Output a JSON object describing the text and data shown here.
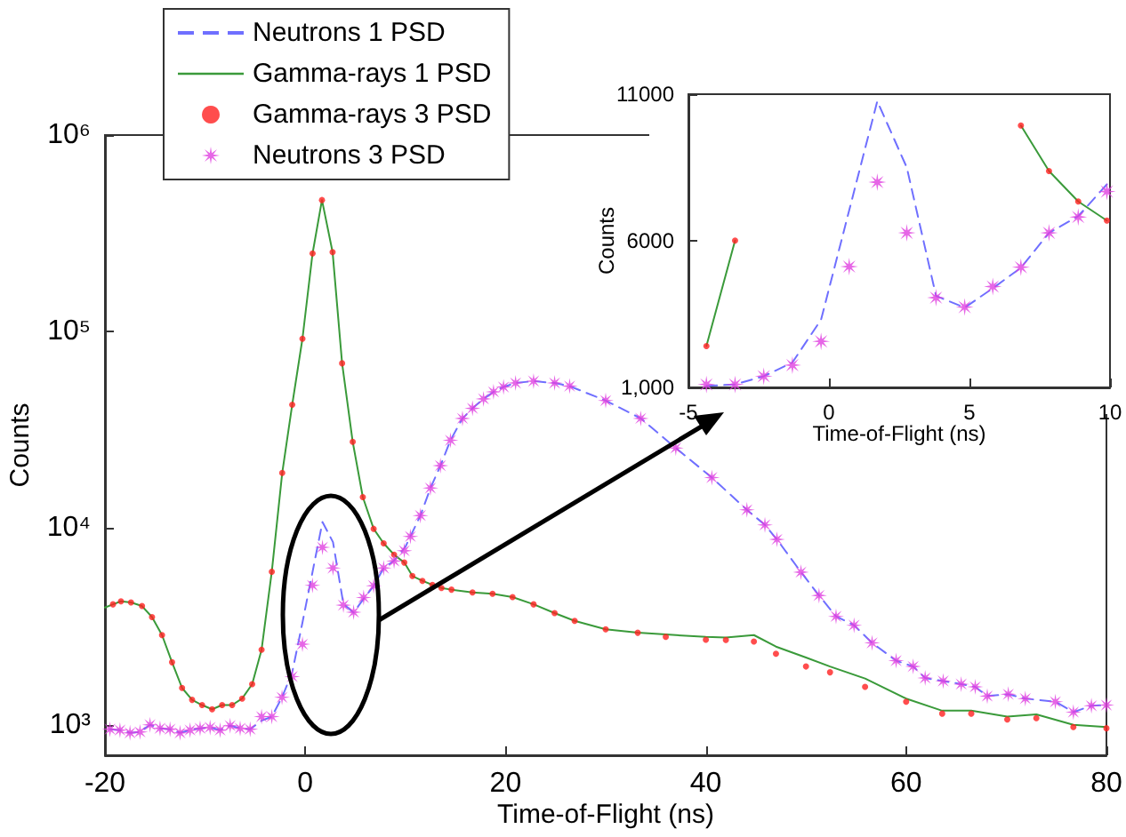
{
  "chart_data": [
    {
      "type": "line",
      "xlabel": "Time-of-Flight (ns)",
      "ylabel": "Counts",
      "log": "y",
      "xlim": [
        -20,
        80
      ],
      "xticks": [
        -20,
        0,
        20,
        40,
        60,
        80
      ],
      "ylim": [
        700,
        1000000
      ],
      "yticks": [
        {
          "value": 1000,
          "label": "10³"
        },
        {
          "value": 10000,
          "label": "10⁴"
        },
        {
          "value": 100000,
          "label": "10⁵"
        },
        {
          "value": 1000000,
          "label": "10⁶"
        }
      ],
      "grid": false,
      "legend": "top left",
      "series": [
        {
          "name": "Neutrons 1 PSD",
          "type": "line",
          "color": "#6f6fff",
          "line_style": "dashed",
          "marker": "none",
          "x": [
            -19.5,
            -18.5,
            -17.5,
            -16.5,
            -15.5,
            -14.5,
            -13.5,
            -12.5,
            -11.5,
            -10.5,
            -9.5,
            -8.5,
            -7.5,
            -6.5,
            -5.5,
            -4.36,
            -3.34,
            -2.32,
            -1.3,
            -0.28,
            1.72,
            2.77,
            3.81,
            4.83,
            5.83,
            6.83,
            7.83,
            8.87,
            10,
            11.5,
            12.5,
            13.5,
            14.5,
            15.7,
            16.7,
            17.8,
            18.8,
            19.8,
            21,
            22.8,
            24.9,
            26.4,
            30,
            33.5,
            37,
            40.6,
            44.1,
            45.9,
            47.1,
            49.5,
            51.3,
            53,
            54.8,
            56.6,
            59,
            60.7,
            61.9,
            63.7,
            65.5,
            66.9,
            68.1,
            70.2,
            71.9,
            74.9,
            76.7,
            78.5,
            80
          ],
          "values": [
            950,
            940,
            910,
            920,
            1000,
            960,
            950,
            910,
            940,
            960,
            970,
            940,
            990,
            960,
            950,
            1050,
            1100,
            1380,
            1850,
            3310,
            10760,
            8500,
            4120,
            3720,
            4380,
            5080,
            6270,
            6840,
            8040,
            11600,
            16000,
            20800,
            28000,
            36200,
            40700,
            45500,
            49400,
            52300,
            54800,
            56000,
            54800,
            52800,
            44600,
            36200,
            25600,
            18100,
            12400,
            10400,
            8770,
            5980,
            4550,
            3560,
            3210,
            2610,
            2120,
            1980,
            1730,
            1670,
            1610,
            1560,
            1400,
            1430,
            1360,
            1310,
            1160,
            1250,
            1260
          ]
        },
        {
          "name": "Gamma-rays 1 PSD",
          "type": "line",
          "color": "#3a9a3a",
          "line_style": "solid",
          "marker": "none",
          "x": [
            -20,
            -19.2,
            -18.4,
            -17.4,
            -16.3,
            -15.3,
            -14.3,
            -13.3,
            -12.3,
            -11.3,
            -10.3,
            -9.3,
            -8.3,
            -7.3,
            -6.3,
            -5.3,
            -4.36,
            -3.34,
            -2.3,
            -1.3,
            -0.28,
            0.73,
            1.67,
            2.73,
            3.68,
            4.74,
            5.75,
            6.83,
            7.83,
            8.87,
            9.89,
            10.7,
            11.7,
            12.7,
            13.6,
            14.6,
            16.7,
            18.7,
            20.7,
            22.8,
            24.9,
            26.9,
            30,
            33.2,
            36,
            40,
            42,
            44.8,
            47,
            50,
            52.4,
            55.9,
            60,
            63.6,
            66.5,
            70.1,
            73,
            76.7,
            80
          ],
          "values": [
            3950,
            4100,
            4250,
            4190,
            4020,
            3530,
            2860,
            2080,
            1540,
            1340,
            1260,
            1200,
            1260,
            1260,
            1360,
            1610,
            2410,
            6010,
            19100,
            42500,
            92000,
            250000,
            467000,
            254000,
            69000,
            27500,
            14400,
            9930,
            8380,
            7340,
            6690,
            5710,
            5400,
            5150,
            4970,
            4870,
            4710,
            4640,
            4460,
            4100,
            3700,
            3380,
            3060,
            2940,
            2880,
            2800,
            2780,
            2860,
            2500,
            2200,
            1980,
            1720,
            1360,
            1180,
            1180,
            1100,
            1130,
            1000,
            975
          ]
        },
        {
          "name": "Gamma-rays 3 PSD",
          "type": "scatter",
          "color": "#ff2020",
          "marker": "circle",
          "x": [
            -19.2,
            -18.4,
            -17.4,
            -16.3,
            -15.3,
            -14.3,
            -13.3,
            -12.3,
            -11.3,
            -10.3,
            -9.3,
            -8.3,
            -7.3,
            -6.3,
            -5.3,
            -4.36,
            -3.34,
            -2.3,
            -1.3,
            -0.28,
            0.73,
            1.67,
            2.73,
            3.68,
            4.74,
            5.75,
            6.83,
            7.83,
            8.87,
            9.89,
            10.7,
            11.7,
            12.7,
            13.6,
            14.6,
            16.7,
            18.7,
            20.7,
            22.8,
            24.9,
            26.9,
            30,
            33.2,
            36,
            40,
            42,
            44.8,
            47,
            50,
            52.4,
            55.9,
            60,
            63.6,
            66.5,
            70.1,
            73,
            76.7,
            80
          ],
          "values": [
            4100,
            4250,
            4190,
            4020,
            3530,
            2860,
            2080,
            1540,
            1340,
            1260,
            1200,
            1260,
            1260,
            1360,
            1610,
            2410,
            6010,
            19100,
            42500,
            92000,
            250000,
            467000,
            254000,
            69000,
            27500,
            14400,
            9930,
            8380,
            7340,
            6690,
            5710,
            5400,
            5150,
            4970,
            4870,
            4710,
            4640,
            4460,
            4100,
            3700,
            3380,
            3060,
            2940,
            2800,
            2710,
            2700,
            2650,
            2300,
            1980,
            1850,
            1560,
            1310,
            1140,
            1140,
            1065,
            1080,
            975,
            960
          ]
        },
        {
          "name": "Neutrons 3 PSD",
          "type": "scatter",
          "color": "#e040e0",
          "marker": "star",
          "x": [
            -19.5,
            -18.5,
            -17.5,
            -16.5,
            -15.5,
            -14.5,
            -13.5,
            -12.5,
            -11.5,
            -10.5,
            -9.5,
            -8.5,
            -7.5,
            -6.5,
            -5.5,
            -4.36,
            -3.34,
            -2.32,
            -1.3,
            -0.28,
            0.72,
            1.72,
            2.77,
            3.81,
            4.83,
            5.83,
            6.83,
            7.83,
            8.87,
            9.89,
            10.5,
            11.5,
            12.5,
            13.5,
            14.5,
            15.7,
            16.7,
            17.8,
            18.8,
            19.8,
            21,
            22.8,
            24.9,
            26.4,
            30,
            33.5,
            37,
            40.6,
            44.1,
            45.9,
            47.1,
            49.5,
            51.3,
            53,
            54.8,
            56.6,
            59,
            60.7,
            61.9,
            63.7,
            65.5,
            66.9,
            68.1,
            70.2,
            71.9,
            74.9,
            76.7,
            78.5,
            80
          ],
          "values": [
            950,
            940,
            910,
            920,
            1000,
            960,
            950,
            910,
            940,
            960,
            970,
            940,
            990,
            960,
            950,
            1100,
            1100,
            1380,
            1760,
            2570,
            5120,
            8000,
            6270,
            4060,
            3740,
            4440,
            5100,
            6270,
            6810,
            7680,
            9080,
            11600,
            16000,
            20800,
            28000,
            36200,
            40700,
            45500,
            49400,
            52300,
            54800,
            56000,
            54800,
            52800,
            44600,
            36200,
            25600,
            18100,
            12400,
            10400,
            8770,
            5980,
            4550,
            3560,
            3210,
            2610,
            2120,
            1980,
            1730,
            1670,
            1610,
            1560,
            1400,
            1430,
            1360,
            1310,
            1160,
            1250,
            1260
          ]
        }
      ]
    },
    {
      "type": "line",
      "xlabel": "Time-of-Flight (ns)",
      "ylabel": "Counts",
      "xlim": [
        -5,
        10
      ],
      "xticks": [
        -5,
        0,
        5,
        10
      ],
      "ylim": [
        1000,
        11000
      ],
      "yticks": [
        {
          "value": 1000,
          "label": "1,000"
        },
        6000,
        11000
      ],
      "grid": false,
      "series": [
        {
          "type": "line",
          "color": "#6f6fff",
          "line_style": "dashed",
          "marker": "none",
          "x": [
            -4.36,
            -3.34,
            -2.32,
            -1.3,
            -0.28,
            1.72,
            2.77,
            3.81,
            4.83,
            5.83,
            6.83,
            7.83,
            8.87,
            10
          ],
          "values": [
            1050,
            1100,
            1380,
            1850,
            3310,
            10760,
            8500,
            4120,
            3720,
            4380,
            5080,
            6270,
            6840,
            8040
          ]
        },
        {
          "type": "line",
          "color": "#3a9a3a",
          "line_style": "solid",
          "marker": "none",
          "x": [
            -4.36,
            -3.34,
            0,
            6.83,
            7.83,
            8.87,
            9.89
          ],
          "values": [
            2410,
            6010,
            null,
            9930,
            8380,
            7340,
            6690
          ]
        },
        {
          "type": "scatter",
          "color": "#ff2020",
          "marker": "circle",
          "x": [
            -4.36,
            -3.34,
            6.83,
            7.83,
            8.87,
            9.89
          ],
          "values": [
            2410,
            6010,
            9930,
            8380,
            7340,
            6690
          ]
        },
        {
          "type": "scatter",
          "color": "#e040e0",
          "marker": "star",
          "x": [
            -4.36,
            -3.34,
            -2.32,
            -1.3,
            -0.28,
            0.72,
            1.72,
            2.77,
            3.81,
            4.83,
            5.83,
            6.83,
            7.83,
            8.87,
            9.89
          ],
          "values": [
            1100,
            1100,
            1380,
            1760,
            2570,
            5120,
            8000,
            6270,
            4060,
            3740,
            4440,
            5100,
            6270,
            6810,
            7680
          ]
        }
      ]
    }
  ]
}
